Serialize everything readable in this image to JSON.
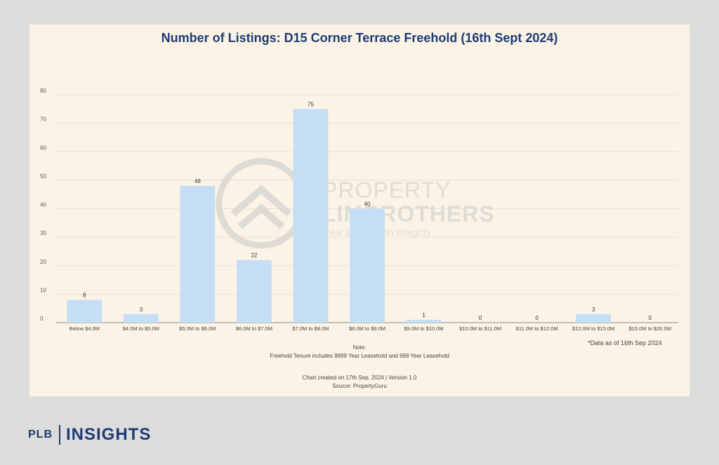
{
  "chart_data": {
    "type": "bar",
    "title": "Number of Listings: D15 Corner Terrace Freehold (16th Sept 2024)",
    "categories": [
      "Below $4.0M",
      "$4.0M to $5.0M",
      "$5.0M to $6.0M",
      "$6.0M to $7.0M",
      "$7.0M to $8.0M",
      "$8.0M to $9.0M",
      "$9.0M to $10.0M",
      "$10.0M to $11.0M",
      "$11.0M to $12.0M",
      "$12.0M to $15.0M",
      "$15.0M to $20.0M"
    ],
    "values": [
      8,
      3,
      48,
      22,
      75,
      40,
      1,
      0,
      0,
      3,
      0
    ],
    "yticks": [
      0,
      10,
      20,
      30,
      40,
      50,
      60,
      70,
      80
    ],
    "ylim": [
      0,
      80
    ],
    "grid": true,
    "legend": "none",
    "bar_color": "#c6def5"
  },
  "notes": {
    "as_of": "*Data as of 16th Sep 2024",
    "note_heading": "Note:",
    "note_text": "Freehold Tenure includes 9999 Year Leasehold and 999 Year Leasehold",
    "created": "Chart created on 17th Sep, 2024 | Version 1.0",
    "source": "Source: PropertyGuru"
  },
  "watermark": {
    "line1": "PROPERTY",
    "line2": "LIMBROTHERS",
    "line3": "Real Estate with Integrity"
  },
  "brand": {
    "plb": "PLB",
    "insights": "INSIGHTS"
  },
  "colors": {
    "title": "#1f3a73",
    "background": "#fbf4e6",
    "page": "#dcdcdc"
  }
}
